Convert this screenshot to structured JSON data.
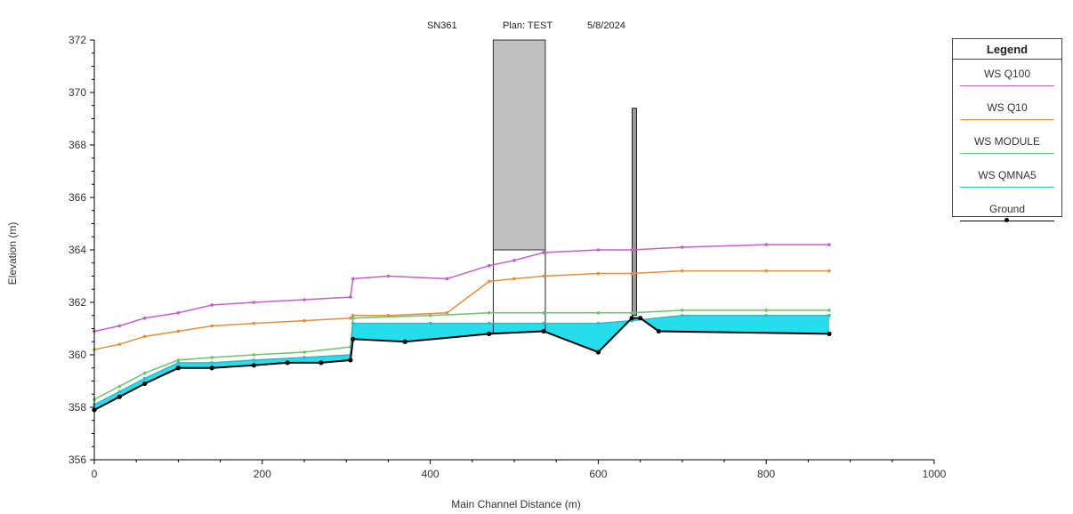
{
  "header": {
    "left": "SN361",
    "center": "Plan: TEST",
    "right": "5/8/2024"
  },
  "legend": {
    "title": "Legend",
    "items": [
      {
        "label": "WS Q100",
        "color": "#c060c8"
      },
      {
        "label": "WS Q10",
        "color": "#e09040"
      },
      {
        "label": "WS MODULE",
        "color": "#70c070"
      },
      {
        "label": "WS QMNA5",
        "color": "#30b8c8"
      },
      {
        "label": "Ground",
        "color": "#000000"
      }
    ]
  },
  "chart_data": {
    "type": "line",
    "xlabel": "Main Channel Distance (m)",
    "ylabel": "Elevation (m)",
    "xlim": [
      0,
      1000
    ],
    "ylim": [
      356,
      372
    ],
    "xticks": [
      0,
      200,
      400,
      600,
      800,
      1000
    ],
    "yticks": [
      356,
      358,
      360,
      362,
      364,
      366,
      368,
      370,
      372
    ],
    "series": [
      {
        "name": "WS Q100",
        "color": "#c060c8",
        "x": [
          0,
          30,
          60,
          100,
          140,
          190,
          250,
          305,
          308,
          350,
          420,
          470,
          500,
          535,
          600,
          640,
          700,
          800,
          875
        ],
        "y": [
          360.9,
          361.1,
          361.4,
          361.6,
          361.9,
          362.0,
          362.1,
          362.2,
          362.9,
          363.0,
          362.9,
          363.4,
          363.6,
          363.9,
          364.0,
          364.0,
          364.1,
          364.2,
          364.2
        ]
      },
      {
        "name": "WS Q10",
        "color": "#e09040",
        "x": [
          0,
          30,
          60,
          100,
          140,
          190,
          250,
          305,
          308,
          350,
          420,
          470,
          500,
          535,
          600,
          640,
          700,
          800,
          875
        ],
        "y": [
          360.2,
          360.4,
          360.7,
          360.9,
          361.1,
          361.2,
          361.3,
          361.4,
          361.5,
          361.5,
          361.6,
          362.8,
          362.9,
          363.0,
          363.1,
          363.1,
          363.2,
          363.2,
          363.2
        ]
      },
      {
        "name": "WS MODULE",
        "color": "#70c070",
        "x": [
          0,
          30,
          60,
          100,
          140,
          190,
          250,
          305,
          308,
          400,
          470,
          535,
          600,
          640,
          700,
          800,
          875
        ],
        "y": [
          358.3,
          358.8,
          359.3,
          359.8,
          359.9,
          360.0,
          360.1,
          360.3,
          361.4,
          361.5,
          361.6,
          361.6,
          361.6,
          361.6,
          361.7,
          361.7,
          361.7
        ]
      },
      {
        "name": "WS QMNA5",
        "color": "#30b8c8",
        "x": [
          0,
          30,
          60,
          100,
          140,
          190,
          250,
          305,
          308,
          400,
          470,
          535,
          600,
          640,
          700,
          800,
          875
        ],
        "y": [
          358.1,
          358.6,
          359.1,
          359.7,
          359.7,
          359.8,
          359.9,
          360.0,
          361.2,
          361.2,
          361.2,
          361.2,
          361.2,
          361.3,
          361.5,
          361.5,
          361.5
        ]
      },
      {
        "name": "Ground",
        "color": "#000000",
        "x": [
          0,
          30,
          60,
          100,
          140,
          190,
          230,
          270,
          305,
          308,
          370,
          470,
          535,
          600,
          640,
          650,
          672,
          875
        ],
        "y": [
          357.9,
          358.4,
          358.9,
          359.5,
          359.5,
          359.6,
          359.7,
          359.7,
          359.8,
          360.6,
          360.5,
          360.8,
          360.9,
          360.1,
          361.4,
          361.4,
          360.9,
          360.8
        ]
      }
    ],
    "structures": [
      {
        "kind": "bridge",
        "x_left": 475,
        "x_right": 537,
        "y_bottom": 364.0,
        "y_top": 372
      },
      {
        "kind": "pier",
        "x": 643,
        "y_bottom": 361.5,
        "y_top": 369.4
      }
    ]
  }
}
